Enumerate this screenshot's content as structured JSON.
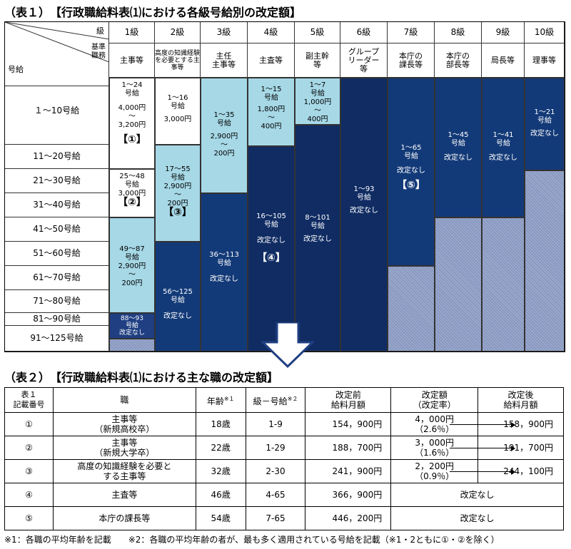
{
  "table1": {
    "title": "（表１）　【行政職給料表⑴における各級号給別の改定額】",
    "header_level_label": "級",
    "header_job_label": "基準\n職務",
    "header_grade_label": "号給",
    "levels": [
      "1級",
      "2級",
      "3級",
      "4級",
      "5級",
      "6級",
      "7級",
      "8級",
      "9級",
      "10級"
    ],
    "jobs": [
      "主事等",
      "高度の知識経験を必要とする主事等",
      "主任\n主事等",
      "主査等",
      "副主幹\n等",
      "グループ\nリーダー\n等",
      "本庁の\n課長等",
      "本庁の\n部長等",
      "局長等",
      "理事等"
    ],
    "grade_ranges": [
      "１～10号給",
      "11～20号給",
      "21～30号給",
      "31～40号給",
      "41～50号給",
      "51～60号給",
      "61～70号給",
      "71～80号給",
      "81～90号給",
      "91～125号給"
    ],
    "blocks": {
      "l1a": {
        "range": "1～24",
        "unit": "号給",
        "amount": "4,000円",
        "tilde": "～",
        "amount2": "3,200円",
        "mark": "【①】"
      },
      "l1b": {
        "range": "25～48",
        "unit": "号給",
        "amount": "3,000円",
        "mark": "【②】"
      },
      "l1c": {
        "range": "49～87",
        "unit": "号給",
        "amount": "2,900円",
        "tilde": "～",
        "amount2": "200円"
      },
      "l1d": {
        "range": "88～93",
        "unit": "号給",
        "status": "改定なし"
      },
      "l2a": {
        "range": "1～16",
        "unit": "号給",
        "amount": "3,000円"
      },
      "l2b": {
        "range": "17～55",
        "unit": "号給",
        "amount": "2,900円",
        "tilde": "～",
        "amount2": "200円",
        "mark": "【③】"
      },
      "l2c": {
        "range": "56～125",
        "unit": "号給",
        "status": "改定なし"
      },
      "l3a": {
        "range": "1～35",
        "unit": "号給",
        "amount": "2,900円",
        "tilde": "～",
        "amount2": "200円"
      },
      "l3b": {
        "range": "36～113",
        "unit": "号給",
        "status": "改定なし"
      },
      "l4a": {
        "range": "1～15",
        "unit": "号給",
        "amount": "1,800円",
        "tilde": "～",
        "amount2": "400円"
      },
      "l4b": {
        "range": "16～105",
        "unit": "号給",
        "status": "改定なし",
        "mark": "【④】"
      },
      "l5a": {
        "range": "1～7",
        "unit": "号給",
        "amount": "1,000円",
        "tilde": "～",
        "amount2": "400円"
      },
      "l5b": {
        "range": "8～101",
        "unit": "号給",
        "status": "改定なし"
      },
      "l6": {
        "range": "1～93",
        "unit": "号給",
        "status": "改定なし"
      },
      "l7": {
        "range": "1～65",
        "unit": "号給",
        "status": "改定なし",
        "mark": "【⑤】"
      },
      "l8": {
        "range": "1～45",
        "unit": "号給",
        "status": "改定なし"
      },
      "l9": {
        "range": "1～41",
        "unit": "号給",
        "status": "改定なし"
      },
      "l10": {
        "range": "1～21",
        "unit": "号給",
        "status": "改定なし"
      }
    }
  },
  "table2": {
    "title": "（表２）　【行政職給料表⑴における主な職の改定額】",
    "headers": {
      "no": "表１\n記載番号",
      "job": "職",
      "age": "年齢",
      "age_sup": "※１",
      "grade": "級－号給",
      "grade_sup": "※２",
      "before": "改定前\n給料月額",
      "diff": "改定額\n（改定率）",
      "after": "改定後\n給料月額"
    },
    "rows": [
      {
        "no": "①",
        "job": "主事等\n（新規高校卒）",
        "age": "18歳",
        "grade": "1-9",
        "before": "154，900円",
        "diff": "4，000円",
        "rate": "（2.6％）",
        "after": "158，900円"
      },
      {
        "no": "②",
        "job": "主事等\n（新規大学卒）",
        "age": "22歳",
        "grade": "1-29",
        "before": "188，700円",
        "diff": "3，000円",
        "rate": "（1.6％）",
        "after": "191，700円"
      },
      {
        "no": "③",
        "job": "高度の知識経験を必要と\nする主事等",
        "age": "32歳",
        "grade": "2-30",
        "before": "241，900円",
        "diff": "2，200円",
        "rate": "（0.9％）",
        "after": "244，100円"
      },
      {
        "no": "④",
        "job": "主査等",
        "age": "46歳",
        "grade": "4-65",
        "before": "366，900円",
        "unchanged": "改定なし"
      },
      {
        "no": "⑤",
        "job": "本庁の課長等",
        "age": "54歳",
        "grade": "7-65",
        "before": "446，200円",
        "unchanged": "改定なし"
      }
    ]
  },
  "footnote": "※1：各職の平均年齢を記載　　※2：各職の平均年齢の者が、最も多く適用されている号給を記載（※1・2ともに①・②を除く）"
}
